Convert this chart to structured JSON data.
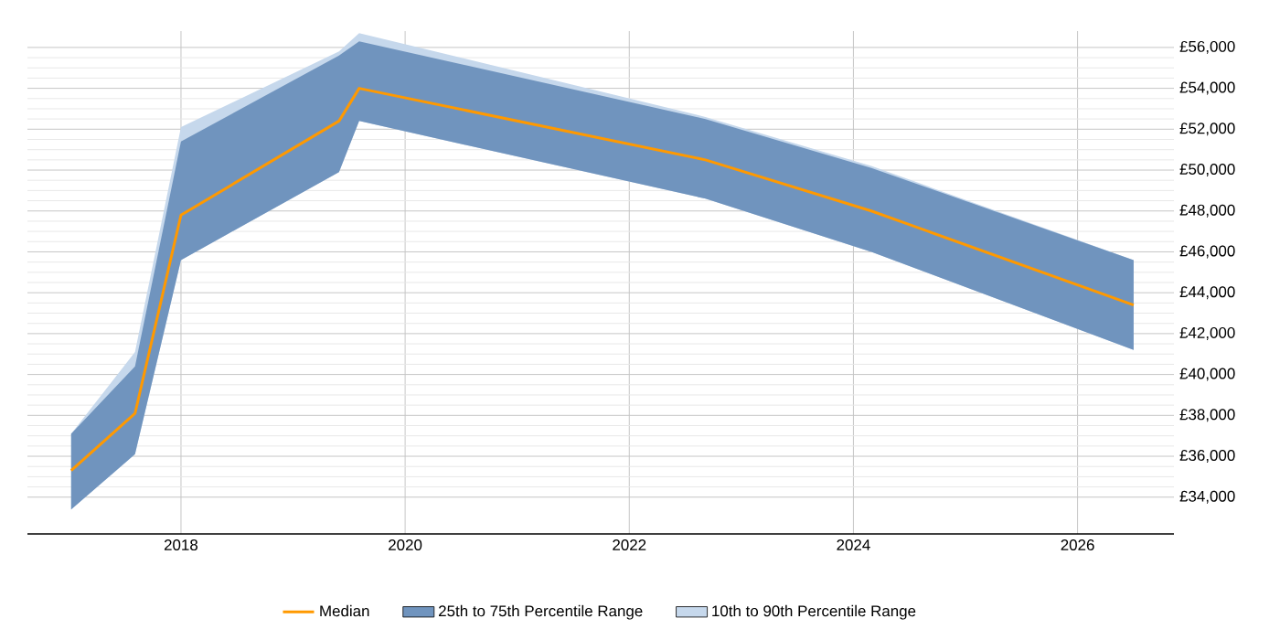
{
  "chart_data": {
    "type": "line",
    "x": [
      2017.02,
      2017.59,
      2018.0,
      2019.41,
      2019.59,
      2022.68,
      2024.16,
      2026.5
    ],
    "series": [
      {
        "name": "Median",
        "color": "#ff9900",
        "values": [
          35300,
          38100,
          47800,
          52400,
          54000,
          50500,
          48000,
          43400
        ]
      },
      {
        "name": "25th to 75th Percentile Range",
        "color": "#7094be",
        "values": [
          null,
          null,
          null,
          null,
          null,
          null,
          null,
          null
        ],
        "lower": [
          33400,
          36100,
          45600,
          49900,
          52400,
          48600,
          46000,
          41200
        ],
        "upper": [
          37100,
          40400,
          51400,
          55600,
          56300,
          52500,
          50100,
          45600
        ]
      },
      {
        "name": "10th to 90th Percentile Range",
        "color": "#c6d8ec",
        "values": [
          null,
          null,
          null,
          null,
          null,
          null,
          null,
          null
        ],
        "lower": [
          33400,
          36100,
          45600,
          49900,
          52400,
          48600,
          46000,
          41200
        ],
        "upper": [
          37100,
          41100,
          52100,
          55800,
          56700,
          52600,
          50200,
          45600
        ]
      }
    ],
    "xlim": [
      2016.63,
      2026.86
    ],
    "xticks": [
      2018,
      2020,
      2022,
      2024,
      2026
    ],
    "ylim": [
      32200,
      56800
    ],
    "yticks": [
      {
        "value": 34000,
        "label": "£34,000"
      },
      {
        "value": 36000,
        "label": "£36,000"
      },
      {
        "value": 38000,
        "label": "£38,000"
      },
      {
        "value": 40000,
        "label": "£40,000"
      },
      {
        "value": 42000,
        "label": "£42,000"
      },
      {
        "value": 44000,
        "label": "£44,000"
      },
      {
        "value": 46000,
        "label": "£46,000"
      },
      {
        "value": 48000,
        "label": "£48,000"
      },
      {
        "value": 50000,
        "label": "£50,000"
      },
      {
        "value": 52000,
        "label": "£52,000"
      },
      {
        "value": 54000,
        "label": "£54,000"
      },
      {
        "value": 56000,
        "label": "£56,000"
      }
    ],
    "grid": true,
    "legend": "bottom"
  }
}
